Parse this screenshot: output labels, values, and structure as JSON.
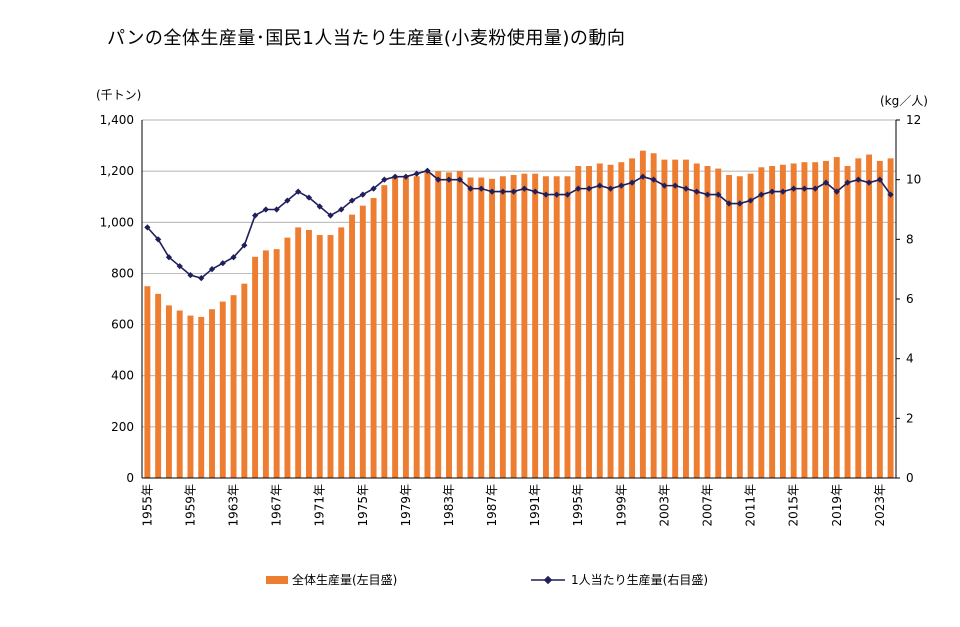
{
  "chart_data": {
    "type": "bar+line",
    "title": "パンの全体生産量･国民1人当たり生産量(小麦粉使用量)の動向",
    "y_left_unit": "(千トン)",
    "y_right_unit": "(kg／人)",
    "y_left_ticks": [
      "0",
      "200",
      "400",
      "600",
      "800",
      "1,000",
      "1,200",
      "1,400"
    ],
    "y_right_ticks": [
      "0",
      "2",
      "4",
      "6",
      "8",
      "10",
      "12"
    ],
    "ylim_left": [
      0,
      1400
    ],
    "ylim_right": [
      0,
      12
    ],
    "grid": true,
    "legend_position": "bottom",
    "x_tick_labels": [
      "1955年",
      "1959年",
      "1963年",
      "1967年",
      "1971年",
      "1975年",
      "1979年",
      "1983年",
      "1987年",
      "1991年",
      "1995年",
      "1999年",
      "2003年",
      "2007年",
      "2011年",
      "2015年",
      "2019年",
      "2023年"
    ],
    "x": [
      1955,
      1956,
      1957,
      1958,
      1959,
      1960,
      1961,
      1962,
      1963,
      1964,
      1965,
      1966,
      1967,
      1968,
      1969,
      1970,
      1971,
      1972,
      1973,
      1974,
      1975,
      1976,
      1977,
      1978,
      1979,
      1980,
      1981,
      1982,
      1983,
      1984,
      1985,
      1986,
      1987,
      1988,
      1989,
      1990,
      1991,
      1992,
      1993,
      1994,
      1995,
      1996,
      1997,
      1998,
      1999,
      2000,
      2001,
      2002,
      2003,
      2004,
      2005,
      2006,
      2007,
      2008,
      2009,
      2010,
      2011,
      2012,
      2013,
      2014,
      2015,
      2016,
      2017,
      2018,
      2019,
      2020,
      2021,
      2022,
      2023,
      2024
    ],
    "series": [
      {
        "name": "全体生産量(左目盛)",
        "kind": "bar",
        "axis": "left",
        "color": "#ED7D31",
        "values": [
          750,
          720,
          675,
          655,
          635,
          630,
          660,
          690,
          715,
          760,
          865,
          890,
          895,
          940,
          980,
          970,
          950,
          950,
          980,
          1030,
          1065,
          1095,
          1145,
          1175,
          1175,
          1180,
          1195,
          1200,
          1195,
          1200,
          1175,
          1175,
          1170,
          1180,
          1185,
          1190,
          1190,
          1180,
          1180,
          1180,
          1220,
          1220,
          1230,
          1225,
          1235,
          1250,
          1280,
          1270,
          1245,
          1245,
          1245,
          1230,
          1220,
          1210,
          1185,
          1180,
          1190,
          1215,
          1220,
          1225,
          1230,
          1235,
          1235,
          1240,
          1255,
          1220,
          1250,
          1265,
          1240,
          1250
        ]
      },
      {
        "name": "1人当たり生産量(右目盛)",
        "kind": "line",
        "axis": "right",
        "color": "#1F1F5C",
        "values": [
          8.4,
          8.0,
          7.4,
          7.1,
          6.8,
          6.7,
          7.0,
          7.2,
          7.4,
          7.8,
          8.8,
          9.0,
          9.0,
          9.3,
          9.6,
          9.4,
          9.1,
          8.8,
          9.0,
          9.3,
          9.5,
          9.7,
          10.0,
          10.1,
          10.1,
          10.2,
          10.3,
          10.0,
          10.0,
          10.0,
          9.7,
          9.7,
          9.6,
          9.6,
          9.6,
          9.7,
          9.6,
          9.5,
          9.5,
          9.5,
          9.7,
          9.7,
          9.8,
          9.7,
          9.8,
          9.9,
          10.1,
          10.0,
          9.8,
          9.8,
          9.7,
          9.6,
          9.5,
          9.5,
          9.2,
          9.2,
          9.3,
          9.5,
          9.6,
          9.6,
          9.7,
          9.7,
          9.7,
          9.9,
          9.6,
          9.9,
          10.0,
          9.9,
          10.0,
          9.5
        ]
      }
    ]
  },
  "legend": {
    "bar_label": "全体生産量(左目盛)",
    "line_label": "1人当たり生産量(右目盛)"
  }
}
